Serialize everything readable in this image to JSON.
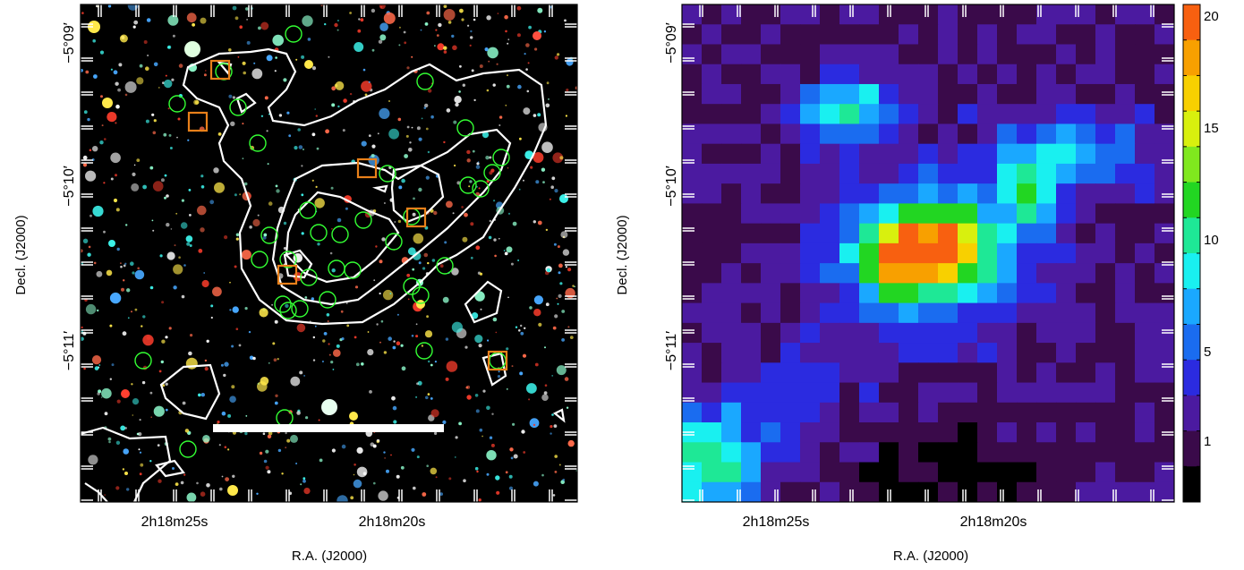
{
  "left_panel": {
    "dec_ticks": [
      "−5°09′",
      "−5°10′",
      "−5°11′"
    ],
    "ra_ticks": [
      "2h18m25s",
      "2h18m20s"
    ],
    "xlabel": "R.A. (J2000)",
    "ylabel": "Decl. (J2000)"
  },
  "right_panel": {
    "dec_ticks": [
      "−5°09′",
      "−5°10′",
      "−5°11′"
    ],
    "ra_ticks": [
      "2h18m25s",
      "2h18m20s"
    ],
    "xlabel": "R.A. (J2000)",
    "ylabel": "Decl. (J2000)"
  },
  "colorbar": {
    "tick_labels": [
      "20",
      "15",
      "10",
      "5",
      "1"
    ],
    "colors": [
      "#000000",
      "#3a0a4a",
      "#4b1aa0",
      "#2b2be0",
      "#1a6cf0",
      "#1aa8ff",
      "#19f0f0",
      "#1ee896",
      "#22d622",
      "#80e81e",
      "#d8f00e",
      "#f8d000",
      "#f8a000",
      "#f86010"
    ]
  }
}
